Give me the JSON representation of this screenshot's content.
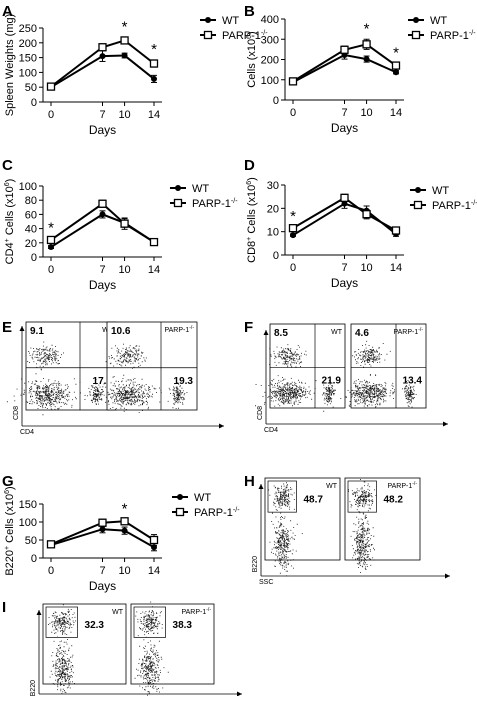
{
  "panel_letters": {
    "A": "A",
    "B": "B",
    "C": "C",
    "D": "D",
    "E": "E",
    "F": "F",
    "G": "G",
    "H": "H",
    "I": "I"
  },
  "legend": {
    "wt": "WT",
    "parp": "PARP-1"
  },
  "x_axis_label": "Days",
  "colors": {
    "ink": "#000000",
    "dots": "#1a1a1a",
    "wt_marker": "#000000",
    "parp_marker": "#ffffff"
  },
  "chart_data": [
    {
      "panel": "A",
      "type": "line",
      "x": [
        0,
        7,
        10,
        14
      ],
      "xticks": [
        "0",
        "7",
        "10",
        "14"
      ],
      "xlabel": "Days",
      "ylabel": "Spleen Weights (mg)",
      "ylim": [
        0,
        250
      ],
      "yticks": [
        0,
        50,
        100,
        150,
        200,
        250
      ],
      "series": [
        {
          "name": "WT",
          "values": [
            50,
            155,
            157,
            78
          ],
          "err": [
            5,
            18,
            8,
            12
          ]
        },
        {
          "name": "PARP-1-/-",
          "values": [
            52,
            185,
            208,
            130
          ],
          "err": [
            5,
            10,
            10,
            12
          ]
        }
      ],
      "significant": [
        {
          "x": 10,
          "mark": "*"
        },
        {
          "x": 14,
          "mark": "*"
        }
      ]
    },
    {
      "panel": "B",
      "type": "line",
      "x": [
        0,
        7,
        10,
        14
      ],
      "xticks": [
        "0",
        "7",
        "10",
        "14"
      ],
      "xlabel": "Days",
      "ylabel": "Cells (x10^6)",
      "ylim": [
        0,
        400
      ],
      "yticks": [
        0,
        100,
        200,
        300,
        400
      ],
      "series": [
        {
          "name": "WT",
          "values": [
            88,
            222,
            202,
            137
          ],
          "err": [
            5,
            20,
            15,
            8
          ]
        },
        {
          "name": "PARP-1-/-",
          "values": [
            92,
            248,
            275,
            170
          ],
          "err": [
            5,
            18,
            25,
            10
          ]
        }
      ],
      "significant": [
        {
          "x": 10,
          "mark": "*"
        },
        {
          "x": 14,
          "mark": "*"
        }
      ]
    },
    {
      "panel": "C",
      "type": "line",
      "x": [
        0,
        7,
        10,
        14
      ],
      "xticks": [
        "0",
        "7",
        "10",
        "14"
      ],
      "xlabel": "Days",
      "ylabel": "CD4+ Cells (x10^6)",
      "ylim": [
        0,
        100
      ],
      "yticks": [
        0,
        20,
        40,
        60,
        80,
        100
      ],
      "series": [
        {
          "name": "WT",
          "values": [
            14,
            60,
            48,
            21
          ],
          "err": [
            2,
            5,
            6,
            2
          ]
        },
        {
          "name": "PARP-1-/-",
          "values": [
            24,
            75,
            47,
            21
          ],
          "err": [
            2,
            5,
            8,
            2
          ]
        }
      ],
      "significant": [
        {
          "x": 0,
          "mark": "*"
        }
      ]
    },
    {
      "panel": "D",
      "type": "line",
      "x": [
        0,
        7,
        10,
        14
      ],
      "xticks": [
        "0",
        "7",
        "10",
        "14"
      ],
      "xlabel": "Days",
      "ylabel": "CD8+ Cells (x10^6)",
      "ylim": [
        0,
        30
      ],
      "yticks": [
        0,
        10,
        20,
        30
      ],
      "series": [
        {
          "name": "WT",
          "values": [
            8.5,
            22,
            19,
            9
          ],
          "err": [
            0.5,
            2,
            2,
            1
          ]
        },
        {
          "name": "PARP-1-/-",
          "values": [
            11.5,
            24.5,
            17.5,
            10.5
          ],
          "err": [
            0.5,
            1.5,
            2,
            1
          ]
        }
      ],
      "significant": [
        {
          "x": 0,
          "mark": "*"
        }
      ]
    },
    {
      "panel": "G",
      "type": "line",
      "x": [
        0,
        7,
        10,
        14
      ],
      "xticks": [
        "0",
        "7",
        "10",
        "14"
      ],
      "xlabel": "Days",
      "ylabel": "B220+ Cells (x10^6)",
      "ylim": [
        0,
        150
      ],
      "yticks": [
        0,
        50,
        100,
        150
      ],
      "series": [
        {
          "name": "WT",
          "values": [
            36,
            80,
            76,
            30
          ],
          "err": [
            3,
            10,
            10,
            10
          ]
        },
        {
          "name": "PARP-1-/-",
          "values": [
            38,
            98,
            102,
            50
          ],
          "err": [
            3,
            10,
            5,
            15
          ]
        }
      ],
      "significant": [
        {
          "x": 10,
          "mark": "*"
        }
      ]
    }
  ],
  "flow_panels": [
    {
      "panel": "E",
      "xlabel": "CD4",
      "ylabel": "CD8",
      "plots": [
        {
          "label": "WT",
          "tl": "9.1",
          "br": "17.2"
        },
        {
          "label": "PARP-1",
          "tl": "10.6",
          "br": "19.3"
        }
      ]
    },
    {
      "panel": "F",
      "xlabel": "CD4",
      "ylabel": "CD8",
      "plots": [
        {
          "label": "WT",
          "tl": "8.5",
          "br": "21.9"
        },
        {
          "label": "PARP-1",
          "tl": "4.6",
          "br": "13.4"
        }
      ]
    },
    {
      "panel": "H",
      "xlabel": "SSC",
      "ylabel": "B220",
      "plots": [
        {
          "label": "WT",
          "gate": "48.7"
        },
        {
          "label": "PARP-1",
          "gate": "48.2"
        }
      ]
    },
    {
      "panel": "I",
      "xlabel": "SSC",
      "ylabel": "B220",
      "plots": [
        {
          "label": "WT",
          "gate": "32.3"
        },
        {
          "label": "PARP-1",
          "gate": "38.3"
        }
      ]
    }
  ]
}
